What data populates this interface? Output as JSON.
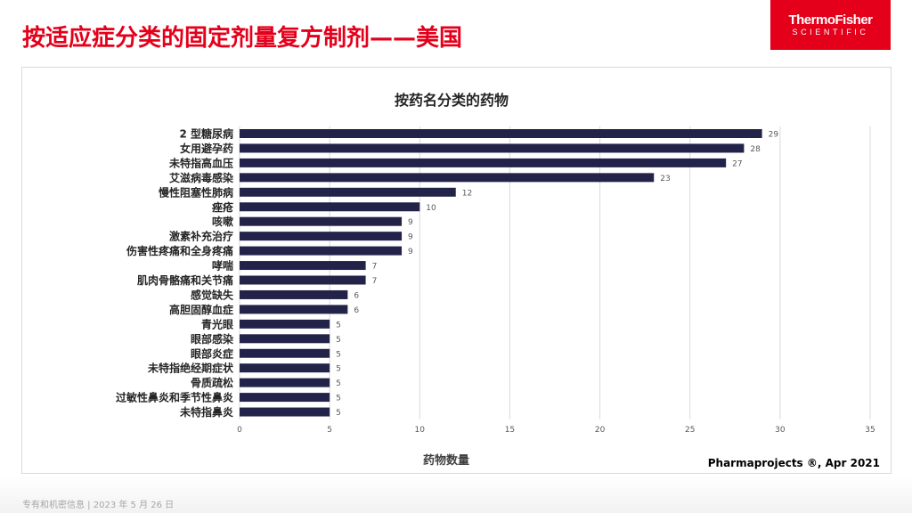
{
  "slide": {
    "title": "按适应症分类的固定剂量复方制剂——美国",
    "logo_line1": "ThermoFisher",
    "logo_line2": "SCIENTIFIC",
    "footer": "专有和机密信息 | 2023 年 5 月 26 日",
    "source": "Pharmaprojects ®, Apr 2021",
    "accent_color": "#e4001b",
    "bar_color": "#23234a"
  },
  "chart_data": {
    "type": "bar",
    "orientation": "horizontal",
    "title": "按药名分类的药物",
    "xlabel": "药物数量",
    "ylabel": "",
    "xlim": [
      0,
      35
    ],
    "xticks": [
      0,
      5,
      10,
      15,
      20,
      25,
      30,
      35
    ],
    "grid": true,
    "categories": [
      "2 型糖尿病",
      "女用避孕药",
      "未特指高血压",
      "艾滋病毒感染",
      "慢性阻塞性肺病",
      "痤疮",
      "咳嗽",
      "激素补充治疗",
      "伤害性疼痛和全身疼痛",
      "哮喘",
      "肌肉骨骼痛和关节痛",
      "感觉缺失",
      "高胆固醇血症",
      "青光眼",
      "眼部感染",
      "眼部炎症",
      "未特指绝经期症状",
      "骨质疏松",
      "过敏性鼻炎和季节性鼻炎",
      "未特指鼻炎"
    ],
    "values": [
      29,
      28,
      27,
      23,
      12,
      10,
      9,
      9,
      9,
      7,
      7,
      6,
      6,
      5,
      5,
      5,
      5,
      5,
      5,
      5
    ]
  }
}
